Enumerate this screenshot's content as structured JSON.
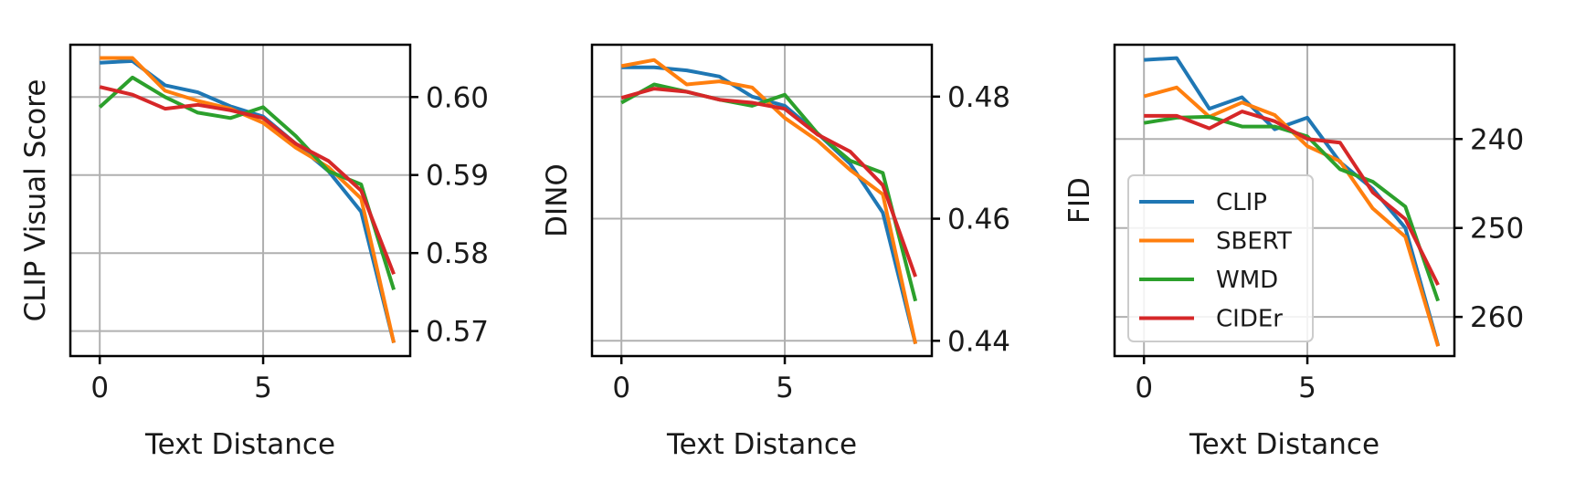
{
  "colors": {
    "CLIP": "#1f77b4",
    "SBERT": "#ff7f0e",
    "WMD": "#2ca02c",
    "CIDEr": "#d62728"
  },
  "chart_data": [
    {
      "type": "line",
      "xlabel": "Text Distance",
      "ylabel": "CLIP Visual Score",
      "xlim": [
        -0.9,
        9.5
      ],
      "ylim": [
        0.5668,
        0.6067
      ],
      "xticks": [
        0,
        5
      ],
      "xtick_labels": [
        "0",
        "5"
      ],
      "yticks": [
        0.57,
        0.58,
        0.59,
        0.6
      ],
      "ytick_labels": [
        "0.57",
        "0.58",
        "0.59",
        "0.60"
      ],
      "ytick_side": "right",
      "grid": true,
      "legend": null,
      "x": [
        0,
        1,
        2,
        3,
        4,
        5,
        6,
        7,
        8,
        9
      ],
      "series": [
        {
          "name": "CLIP",
          "values": [
            0.6044,
            0.6046,
            0.6015,
            0.6006,
            0.5988,
            0.5975,
            0.594,
            0.5905,
            0.5853,
            0.5685
          ]
        },
        {
          "name": "SBERT",
          "values": [
            0.605,
            0.605,
            0.6008,
            0.5995,
            0.5985,
            0.5967,
            0.5935,
            0.591,
            0.587,
            0.5685
          ]
        },
        {
          "name": "WMD",
          "values": [
            0.5987,
            0.6025,
            0.6,
            0.598,
            0.5973,
            0.5987,
            0.595,
            0.5905,
            0.5888,
            0.5753
          ]
        },
        {
          "name": "CIDEr",
          "values": [
            0.6013,
            0.6003,
            0.5985,
            0.599,
            0.5983,
            0.5973,
            0.594,
            0.5918,
            0.588,
            0.5773
          ]
        }
      ]
    },
    {
      "type": "line",
      "xlabel": "Text Distance",
      "ylabel": "DINO",
      "xlim": [
        -0.9,
        9.5
      ],
      "ylim": [
        0.4375,
        0.4885
      ],
      "xticks": [
        0,
        5
      ],
      "xtick_labels": [
        "0",
        "5"
      ],
      "yticks": [
        0.44,
        0.46,
        0.48
      ],
      "ytick_labels": [
        "0.44",
        "0.46",
        "0.48"
      ],
      "ytick_side": "right",
      "grid": true,
      "legend": null,
      "x": [
        0,
        1,
        2,
        3,
        4,
        5,
        6,
        7,
        8,
        9
      ],
      "series": [
        {
          "name": "CLIP",
          "values": [
            0.4848,
            0.4848,
            0.4843,
            0.4833,
            0.48,
            0.4785,
            0.474,
            0.469,
            0.461,
            0.4395
          ]
        },
        {
          "name": "SBERT",
          "values": [
            0.485,
            0.486,
            0.482,
            0.4825,
            0.4815,
            0.4765,
            0.4728,
            0.468,
            0.464,
            0.4395
          ]
        },
        {
          "name": "WMD",
          "values": [
            0.479,
            0.482,
            0.4808,
            0.4795,
            0.4785,
            0.4803,
            0.474,
            0.4695,
            0.4675,
            0.4465
          ]
        },
        {
          "name": "CIDEr",
          "values": [
            0.4798,
            0.4813,
            0.4808,
            0.4795,
            0.479,
            0.478,
            0.4738,
            0.471,
            0.4655,
            0.4505
          ]
        }
      ]
    },
    {
      "type": "line",
      "xlabel": "Text Distance",
      "ylabel": "FID",
      "xlim": [
        -0.9,
        9.5
      ],
      "ylim": [
        264.4,
        229.4
      ],
      "xticks": [
        0,
        5
      ],
      "xtick_labels": [
        "0",
        "5"
      ],
      "yticks": [
        240,
        250,
        260
      ],
      "ytick_labels": [
        "240",
        "250",
        "260"
      ],
      "ytick_side": "right",
      "grid": true,
      "legend": "center-left",
      "x": [
        0,
        1,
        2,
        3,
        4,
        5,
        6,
        7,
        8,
        9
      ],
      "series": [
        {
          "name": "CLIP",
          "values": [
            231.1,
            230.9,
            236.6,
            235.3,
            238.9,
            237.6,
            242.6,
            245.6,
            250.0,
            263.2
          ]
        },
        {
          "name": "SBERT",
          "values": [
            235.2,
            234.2,
            237.5,
            235.9,
            237.3,
            240.8,
            242.5,
            247.8,
            251.0,
            263.3
          ]
        },
        {
          "name": "WMD",
          "values": [
            238.2,
            237.6,
            237.5,
            238.6,
            238.6,
            239.7,
            243.4,
            244.8,
            247.6,
            258.2
          ]
        },
        {
          "name": "CIDEr",
          "values": [
            237.4,
            237.4,
            238.8,
            236.9,
            238.0,
            240.0,
            240.4,
            246.0,
            249.0,
            256.4
          ]
        }
      ]
    }
  ]
}
